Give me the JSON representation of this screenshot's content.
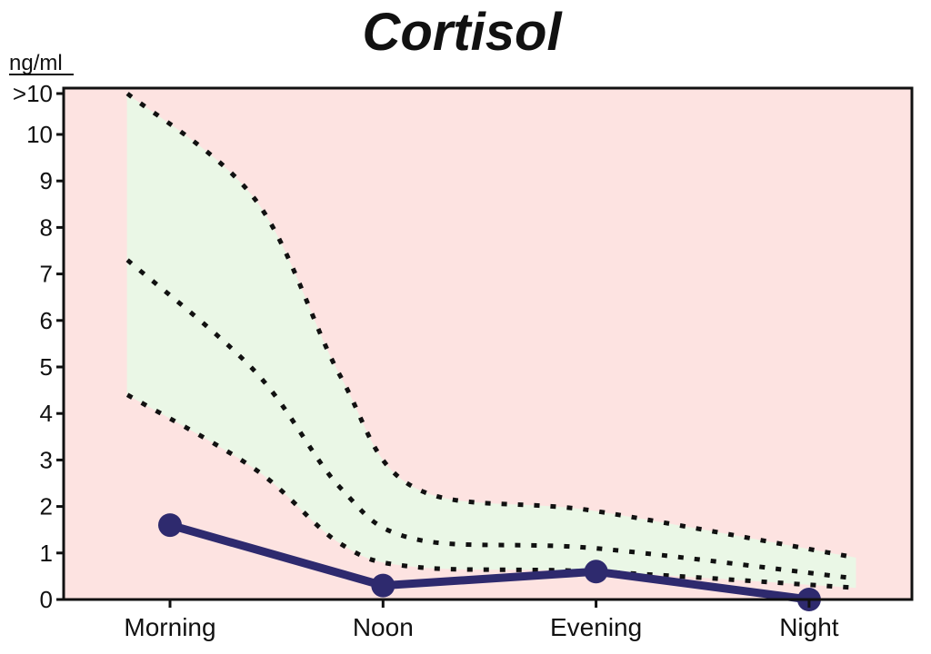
{
  "chart_data": {
    "type": "line",
    "title": "Cortisol",
    "ylabel": "ng/ml",
    "xlabel": "",
    "categories": [
      "Morning",
      "Noon",
      "Evening",
      "Night"
    ],
    "ylim": [
      0,
      10.9
    ],
    "y_ticks": [
      {
        "value": 0,
        "label": "0"
      },
      {
        "value": 1,
        "label": "1"
      },
      {
        "value": 2,
        "label": "2"
      },
      {
        "value": 3,
        "label": "3"
      },
      {
        "value": 4,
        "label": "4"
      },
      {
        "value": 5,
        "label": "5"
      },
      {
        "value": 6,
        "label": "6"
      },
      {
        "value": 7,
        "label": "7"
      },
      {
        "value": 8,
        "label": "8"
      },
      {
        "value": 9,
        "label": "9"
      },
      {
        "value": 10,
        "label": "10"
      },
      {
        "value": 10.9,
        "label": ">10"
      }
    ],
    "series": [
      {
        "values": [
          1.6,
          0.3,
          0.6,
          0.0
        ]
      }
    ],
    "reference_band": {
      "upper": [
        {
          "x": -0.2,
          "y": 10.9
        },
        {
          "x": 0.4,
          "y": 8.6
        },
        {
          "x": 0.8,
          "y": 4.8
        },
        {
          "x": 1.15,
          "y": 2.4
        },
        {
          "x": 2.0,
          "y": 1.9
        },
        {
          "x": 3.22,
          "y": 0.9
        }
      ],
      "middle": [
        {
          "x": -0.2,
          "y": 7.3
        },
        {
          "x": 0.4,
          "y": 4.9
        },
        {
          "x": 0.8,
          "y": 2.4
        },
        {
          "x": 1.15,
          "y": 1.3
        },
        {
          "x": 2.0,
          "y": 1.1
        },
        {
          "x": 3.22,
          "y": 0.45
        }
      ],
      "lower": [
        {
          "x": -0.2,
          "y": 4.4
        },
        {
          "x": 0.4,
          "y": 2.8
        },
        {
          "x": 0.8,
          "y": 1.2
        },
        {
          "x": 1.15,
          "y": 0.7
        },
        {
          "x": 2.0,
          "y": 0.6
        },
        {
          "x": 3.22,
          "y": 0.25
        }
      ]
    },
    "grid": false,
    "colors": {
      "background": "#fde3e1",
      "band_fill": "#eaf7e6",
      "band_line": "#111111",
      "series_line": "#2e2a6e",
      "axis": "#111111"
    }
  }
}
